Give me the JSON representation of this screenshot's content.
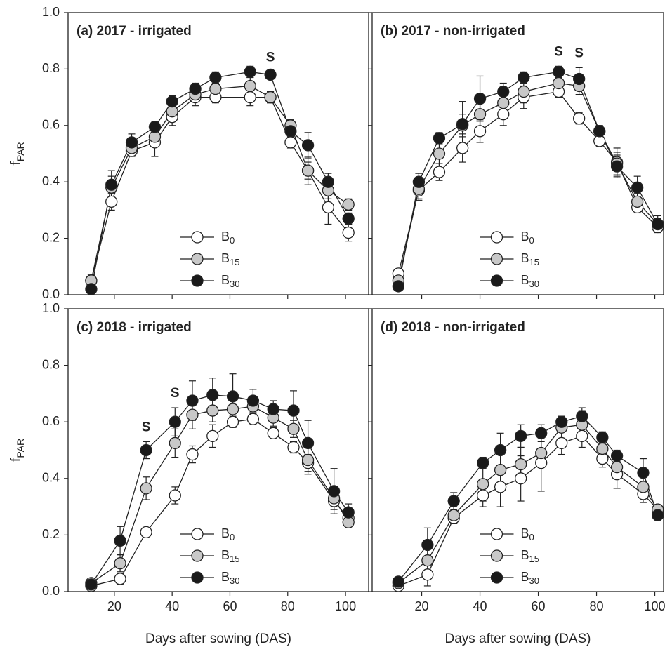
{
  "chart_data": [
    {
      "type": "line",
      "title": "(a) 2017 - irrigated",
      "ylabel": {
        "text": "f",
        "sub": "PAR"
      },
      "x": [
        12,
        19,
        26,
        34,
        40,
        48,
        55,
        67,
        74,
        81,
        87,
        94,
        101
      ],
      "xlim": [
        4,
        108
      ],
      "xticks": [
        20,
        40,
        60,
        80,
        100
      ],
      "xtick_labels": false,
      "ylim": [
        0,
        1
      ],
      "yticks": [
        {
          "value": 0,
          "label": "0.0"
        },
        0.2,
        0.4,
        0.6,
        0.8,
        {
          "value": 1,
          "label": "1.0"
        }
      ],
      "ytick_labels": true,
      "legend": "lower center",
      "series": [
        {
          "name": "B",
          "name_sub": "0",
          "color": "#ffffff",
          "values": [
            0.05,
            0.33,
            0.51,
            0.54,
            0.63,
            0.7,
            0.7,
            0.7,
            0.7,
            0.54,
            0.44,
            0.31,
            0.22
          ],
          "errors": [
            0.02,
            0.03,
            0.02,
            0.05,
            0.03,
            0.03,
            0.02,
            0.03,
            0.02,
            0.02,
            0.03,
            0.06,
            0.03
          ]
        },
        {
          "name": "B",
          "name_sub": "15",
          "color": "#c8c8c8",
          "values": [
            0.05,
            0.38,
            0.52,
            0.56,
            0.65,
            0.71,
            0.73,
            0.74,
            0.7,
            0.6,
            0.44,
            0.37,
            0.32
          ],
          "errors": [
            0.02,
            0.04,
            0.02,
            0.03,
            0.03,
            0.02,
            0.02,
            0.03,
            0.02,
            0.02,
            0.05,
            0.03,
            0.02
          ]
        },
        {
          "name": "B",
          "name_sub": "30",
          "color": "#1a1a1a",
          "values": [
            0.02,
            0.39,
            0.54,
            0.595,
            0.685,
            0.73,
            0.77,
            0.79,
            0.78,
            0.58,
            0.53,
            0.4,
            0.27
          ],
          "errors": [
            0.01,
            0.05,
            0.03,
            0.02,
            0.02,
            0.02,
            0.02,
            0.02,
            0.01,
            0.04,
            0.045,
            0.03,
            0.02
          ]
        }
      ],
      "annotations": [
        {
          "text": "S",
          "x": 74
        }
      ]
    },
    {
      "type": "line",
      "title": "(b) 2017 - non-irrigated",
      "x": [
        12,
        19,
        26,
        34,
        40,
        48,
        55,
        67,
        74,
        81,
        87,
        94,
        101
      ],
      "xlim": [
        3,
        103
      ],
      "xticks": [
        20,
        40,
        60,
        80,
        100
      ],
      "xtick_labels": false,
      "ylim": [
        0,
        1
      ],
      "yticks": [
        0,
        0.2,
        0.4,
        0.6,
        0.8,
        1
      ],
      "ytick_labels": false,
      "legend": "lower center",
      "series": [
        {
          "name": "B",
          "name_sub": "0",
          "color": "#ffffff",
          "values": [
            0.075,
            0.37,
            0.435,
            0.52,
            0.58,
            0.64,
            0.7,
            0.72,
            0.625,
            0.545,
            0.47,
            0.31,
            0.24
          ],
          "errors": [
            0.01,
            0.03,
            0.03,
            0.05,
            0.04,
            0.04,
            0.04,
            0.02,
            0.02,
            0.02,
            0.05,
            0.02,
            0.01
          ]
        },
        {
          "name": "B",
          "name_sub": "15",
          "color": "#c8c8c8",
          "values": [
            0.05,
            0.375,
            0.5,
            0.6,
            0.64,
            0.68,
            0.72,
            0.75,
            0.74,
            0.58,
            0.465,
            0.33,
            0.25
          ],
          "errors": [
            0.01,
            0.04,
            0.05,
            0.04,
            0.05,
            0.03,
            0.04,
            0.03,
            0.03,
            0.02,
            0.04,
            0.03,
            0.02
          ]
        },
        {
          "name": "B",
          "name_sub": "30",
          "color": "#1a1a1a",
          "values": [
            0.03,
            0.4,
            0.555,
            0.605,
            0.695,
            0.72,
            0.77,
            0.79,
            0.765,
            0.58,
            0.455,
            0.38,
            0.25
          ],
          "errors": [
            0.01,
            0.03,
            0.02,
            0.08,
            0.08,
            0.03,
            0.02,
            0.02,
            0.04,
            0.02,
            0.04,
            0.04,
            0.03
          ]
        }
      ],
      "annotations": [
        {
          "text": "S",
          "x": 67
        },
        {
          "text": "S",
          "x": 74
        }
      ]
    },
    {
      "type": "line",
      "title": "(c) 2018 - irrigated",
      "ylabel": {
        "text": "f",
        "sub": "PAR"
      },
      "xlabel": "Days after sowing (DAS)",
      "x": [
        12,
        22,
        31,
        41,
        47,
        54,
        61,
        68,
        75,
        82,
        87,
        96,
        101
      ],
      "xlim": [
        4,
        108
      ],
      "xticks": [
        20,
        40,
        60,
        80,
        100
      ],
      "xtick_labels": true,
      "ylim": [
        0,
        1
      ],
      "yticks": [
        {
          "value": 0,
          "label": "0.0"
        },
        0.2,
        0.4,
        0.6,
        0.8,
        {
          "value": 1,
          "label": "1.0"
        }
      ],
      "ytick_labels": true,
      "legend": "lower center",
      "series": [
        {
          "name": "B",
          "name_sub": "0",
          "color": "#ffffff",
          "values": [
            0.02,
            0.045,
            0.21,
            0.34,
            0.485,
            0.55,
            0.6,
            0.61,
            0.56,
            0.51,
            0.455,
            0.32,
            0.26
          ],
          "errors": [
            0.01,
            0.02,
            0.01,
            0.03,
            0.03,
            0.04,
            0.02,
            0.02,
            0.02,
            0.02,
            0.03,
            0.02,
            0.02
          ]
        },
        {
          "name": "B",
          "name_sub": "15",
          "color": "#c8c8c8",
          "values": [
            0.03,
            0.1,
            0.365,
            0.525,
            0.625,
            0.64,
            0.645,
            0.655,
            0.615,
            0.575,
            0.465,
            0.33,
            0.245
          ],
          "errors": [
            0.01,
            0.03,
            0.04,
            0.05,
            0.05,
            0.04,
            0.04,
            0.03,
            0.03,
            0.03,
            0.05,
            0.04,
            0.02
          ]
        },
        {
          "name": "B",
          "name_sub": "30",
          "color": "#1a1a1a",
          "values": [
            0.025,
            0.18,
            0.5,
            0.6,
            0.675,
            0.695,
            0.69,
            0.675,
            0.645,
            0.64,
            0.525,
            0.355,
            0.28
          ],
          "errors": [
            0.01,
            0.05,
            0.03,
            0.05,
            0.07,
            0.06,
            0.08,
            0.04,
            0.03,
            0.07,
            0.08,
            0.08,
            0.03
          ]
        }
      ],
      "annotations": [
        {
          "text": "S",
          "x": 31
        },
        {
          "text": "S",
          "x": 41
        }
      ]
    },
    {
      "type": "line",
      "title": "(d) 2018 - non-irrigated",
      "xlabel": "Days after sowing (DAS)",
      "x": [
        12,
        22,
        31,
        41,
        47,
        54,
        61,
        68,
        75,
        82,
        87,
        96,
        101
      ],
      "xlim": [
        3,
        103
      ],
      "xticks": [
        20,
        40,
        60,
        80,
        100
      ],
      "xtick_labels": true,
      "ylim": [
        0,
        1
      ],
      "yticks": [
        0,
        0.2,
        0.4,
        0.6,
        0.8,
        1
      ],
      "ytick_labels": false,
      "legend": "lower center",
      "series": [
        {
          "name": "B",
          "name_sub": "0",
          "color": "#ffffff",
          "values": [
            0.02,
            0.06,
            0.26,
            0.34,
            0.37,
            0.4,
            0.455,
            0.525,
            0.55,
            0.47,
            0.415,
            0.345,
            0.29
          ],
          "errors": [
            0.01,
            0.04,
            0.02,
            0.04,
            0.07,
            0.08,
            0.1,
            0.04,
            0.04,
            0.03,
            0.05,
            0.03,
            0.01
          ]
        },
        {
          "name": "B",
          "name_sub": "15",
          "color": "#c8c8c8",
          "values": [
            0.03,
            0.11,
            0.27,
            0.38,
            0.43,
            0.45,
            0.49,
            0.58,
            0.59,
            0.505,
            0.44,
            0.37,
            0.29
          ],
          "errors": [
            0.01,
            0.05,
            0.03,
            0.06,
            0.06,
            0.06,
            0.05,
            0.04,
            0.05,
            0.03,
            0.04,
            0.04,
            0.01
          ]
        },
        {
          "name": "B",
          "name_sub": "30",
          "color": "#1a1a1a",
          "values": [
            0.035,
            0.165,
            0.32,
            0.455,
            0.5,
            0.55,
            0.56,
            0.6,
            0.62,
            0.545,
            0.48,
            0.42,
            0.27
          ],
          "errors": [
            0.01,
            0.06,
            0.03,
            0.02,
            0.06,
            0.04,
            0.03,
            0.02,
            0.03,
            0.02,
            0.02,
            0.05,
            0.02
          ]
        }
      ],
      "annotations": []
    }
  ]
}
